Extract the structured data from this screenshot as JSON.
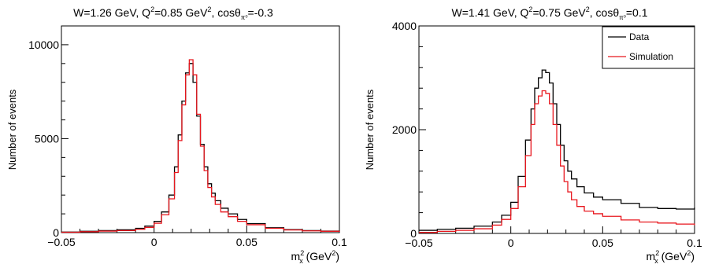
{
  "chart_data": [
    {
      "type": "line",
      "title": {
        "main": "W=1.26 GeV, Q",
        "sup1": "2",
        "mid": "=0.85 GeV",
        "sup2": "2",
        "end": ", cosθ",
        "sub": "π⁰",
        "tail": "=-0.3"
      },
      "xlabel": {
        "base": "m",
        "sub": "x",
        "sup": "2",
        "unit": " (GeV",
        "unit_sup": "2",
        "close": ")"
      },
      "ylabel": "Number of events",
      "xlim": [
        -0.05,
        0.1
      ],
      "ylim": [
        0,
        11000
      ],
      "xticks": [
        -0.05,
        0,
        0.05,
        0.1
      ],
      "xtick_labels": [
        "−0.05",
        "0",
        "0.05",
        "0.1"
      ],
      "yticks": [
        0,
        5000,
        10000
      ],
      "ytick_labels": [
        "0",
        "5000",
        "10000"
      ],
      "legend": null,
      "series": [
        {
          "color": "#000000",
          "x": [
            -0.05,
            -0.04,
            -0.03,
            -0.02,
            -0.01,
            -0.005,
            0,
            0.004,
            0.008,
            0.011,
            0.013,
            0.015,
            0.017,
            0.019,
            0.021,
            0.023,
            0.025,
            0.027,
            0.029,
            0.031,
            0.033,
            0.036,
            0.04,
            0.045,
            0.05,
            0.06,
            0.07,
            0.08,
            0.09,
            0.1
          ],
          "values": [
            30,
            70,
            110,
            150,
            230,
            350,
            600,
            1100,
            2000,
            3500,
            5200,
            7000,
            8500,
            9000,
            8000,
            6200,
            4700,
            3500,
            2600,
            2100,
            1700,
            1300,
            1000,
            700,
            480,
            260,
            160,
            110,
            80,
            60
          ]
        },
        {
          "color": "#e8171e",
          "x": [
            -0.05,
            -0.04,
            -0.03,
            -0.02,
            -0.01,
            -0.005,
            0,
            0.004,
            0.008,
            0.011,
            0.013,
            0.015,
            0.017,
            0.019,
            0.021,
            0.023,
            0.025,
            0.027,
            0.029,
            0.031,
            0.033,
            0.036,
            0.04,
            0.045,
            0.05,
            0.06,
            0.07,
            0.08,
            0.09,
            0.1
          ],
          "values": [
            20,
            50,
            80,
            110,
            180,
            280,
            500,
            950,
            1800,
            3200,
            4900,
            6800,
            8400,
            9200,
            8400,
            6300,
            4600,
            3300,
            2400,
            1900,
            1500,
            1100,
            850,
            600,
            420,
            230,
            140,
            95,
            70,
            50
          ]
        }
      ]
    },
    {
      "type": "line",
      "title": {
        "main": "W=1.41 GeV, Q",
        "sup1": "2",
        "mid": "=0.75 GeV",
        "sup2": "2",
        "end": ", cosθ",
        "sub": "π⁰",
        "tail": "=0.1"
      },
      "xlabel": {
        "base": "m",
        "sub": "x",
        "sup": "2",
        "unit": " (GeV",
        "unit_sup": "2",
        "close": ")"
      },
      "ylabel": "Number of events",
      "xlim": [
        -0.05,
        0.1
      ],
      "ylim": [
        0,
        4000
      ],
      "xticks": [
        -0.05,
        0,
        0.05,
        0.1
      ],
      "xtick_labels": [
        "−0.05",
        "0",
        "0.05",
        "0.1"
      ],
      "yticks": [
        0,
        2000,
        4000
      ],
      "ytick_labels": [
        "0",
        "2000",
        "4000"
      ],
      "legend": {
        "position": "top-right",
        "entries": [
          "Data",
          "Simulation"
        ]
      },
      "series": [
        {
          "name": "Data",
          "color": "#000000",
          "x": [
            -0.05,
            -0.04,
            -0.03,
            -0.02,
            -0.01,
            -0.005,
            0,
            0.004,
            0.008,
            0.011,
            0.013,
            0.015,
            0.017,
            0.019,
            0.021,
            0.023,
            0.025,
            0.027,
            0.029,
            0.031,
            0.033,
            0.036,
            0.04,
            0.045,
            0.05,
            0.06,
            0.07,
            0.08,
            0.09,
            0.1
          ],
          "values": [
            60,
            80,
            100,
            140,
            220,
            350,
            600,
            1100,
            1800,
            2400,
            2800,
            3000,
            3150,
            3100,
            2900,
            2500,
            2100,
            1700,
            1400,
            1200,
            1050,
            900,
            780,
            700,
            650,
            580,
            500,
            480,
            470,
            500
          ]
        },
        {
          "name": "Simulation",
          "color": "#e8171e",
          "x": [
            -0.05,
            -0.04,
            -0.03,
            -0.02,
            -0.01,
            -0.005,
            0,
            0.004,
            0.008,
            0.011,
            0.013,
            0.015,
            0.017,
            0.019,
            0.021,
            0.023,
            0.025,
            0.027,
            0.029,
            0.031,
            0.033,
            0.036,
            0.04,
            0.045,
            0.05,
            0.06,
            0.07,
            0.08,
            0.09,
            0.1
          ],
          "values": [
            20,
            40,
            60,
            90,
            160,
            270,
            480,
            900,
            1500,
            2100,
            2500,
            2650,
            2750,
            2700,
            2500,
            2100,
            1700,
            1300,
            1000,
            800,
            650,
            520,
            430,
            380,
            330,
            260,
            220,
            200,
            180,
            160
          ]
        }
      ]
    }
  ]
}
